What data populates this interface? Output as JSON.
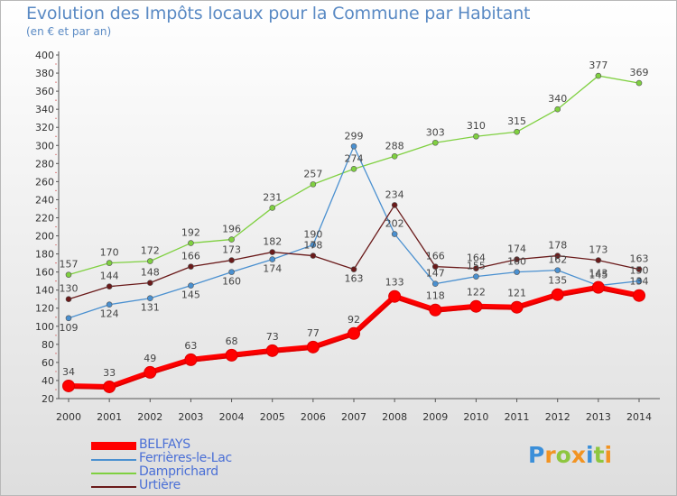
{
  "header": {
    "title": "Evolution des Impôts locaux pour la Commune par Habitant",
    "subtitle": "(en € et par an)"
  },
  "logo": {
    "text": "Proxiti"
  },
  "chart_data": {
    "type": "line",
    "title": "Evolution des Impôts locaux pour la Commune par Habitant",
    "subtitle": "(en € et par an)",
    "xlabel": "",
    "ylabel": "",
    "ylim": [
      20,
      400
    ],
    "ytick_step": 20,
    "grid": false,
    "legend_position": "bottom-left",
    "x": [
      "2000",
      "2001",
      "2002",
      "2003",
      "2004",
      "2005",
      "2006",
      "2007",
      "2008",
      "2009",
      "2010",
      "2011",
      "2012",
      "2013",
      "2014"
    ],
    "series": [
      {
        "name": "BELFAYS",
        "color": "#ff0000",
        "values": [
          34,
          33,
          49,
          63,
          68,
          73,
          77,
          92,
          133,
          118,
          122,
          121,
          135,
          143,
          134
        ]
      },
      {
        "name": "Ferrières-le-Lac",
        "color": "#4a90d0",
        "values": [
          109,
          124,
          131,
          145,
          160,
          174,
          190,
          299,
          202,
          147,
          155,
          160,
          162,
          145,
          150
        ]
      },
      {
        "name": "Damprichard",
        "color": "#7fd040",
        "values": [
          157,
          170,
          172,
          192,
          196,
          231,
          257,
          274,
          288,
          303,
          310,
          315,
          340,
          377,
          369
        ]
      },
      {
        "name": "Urtière",
        "color": "#6a1a1a",
        "values": [
          130,
          144,
          148,
          166,
          173,
          182,
          178,
          163,
          234,
          166,
          164,
          174,
          178,
          173,
          163
        ]
      }
    ]
  }
}
